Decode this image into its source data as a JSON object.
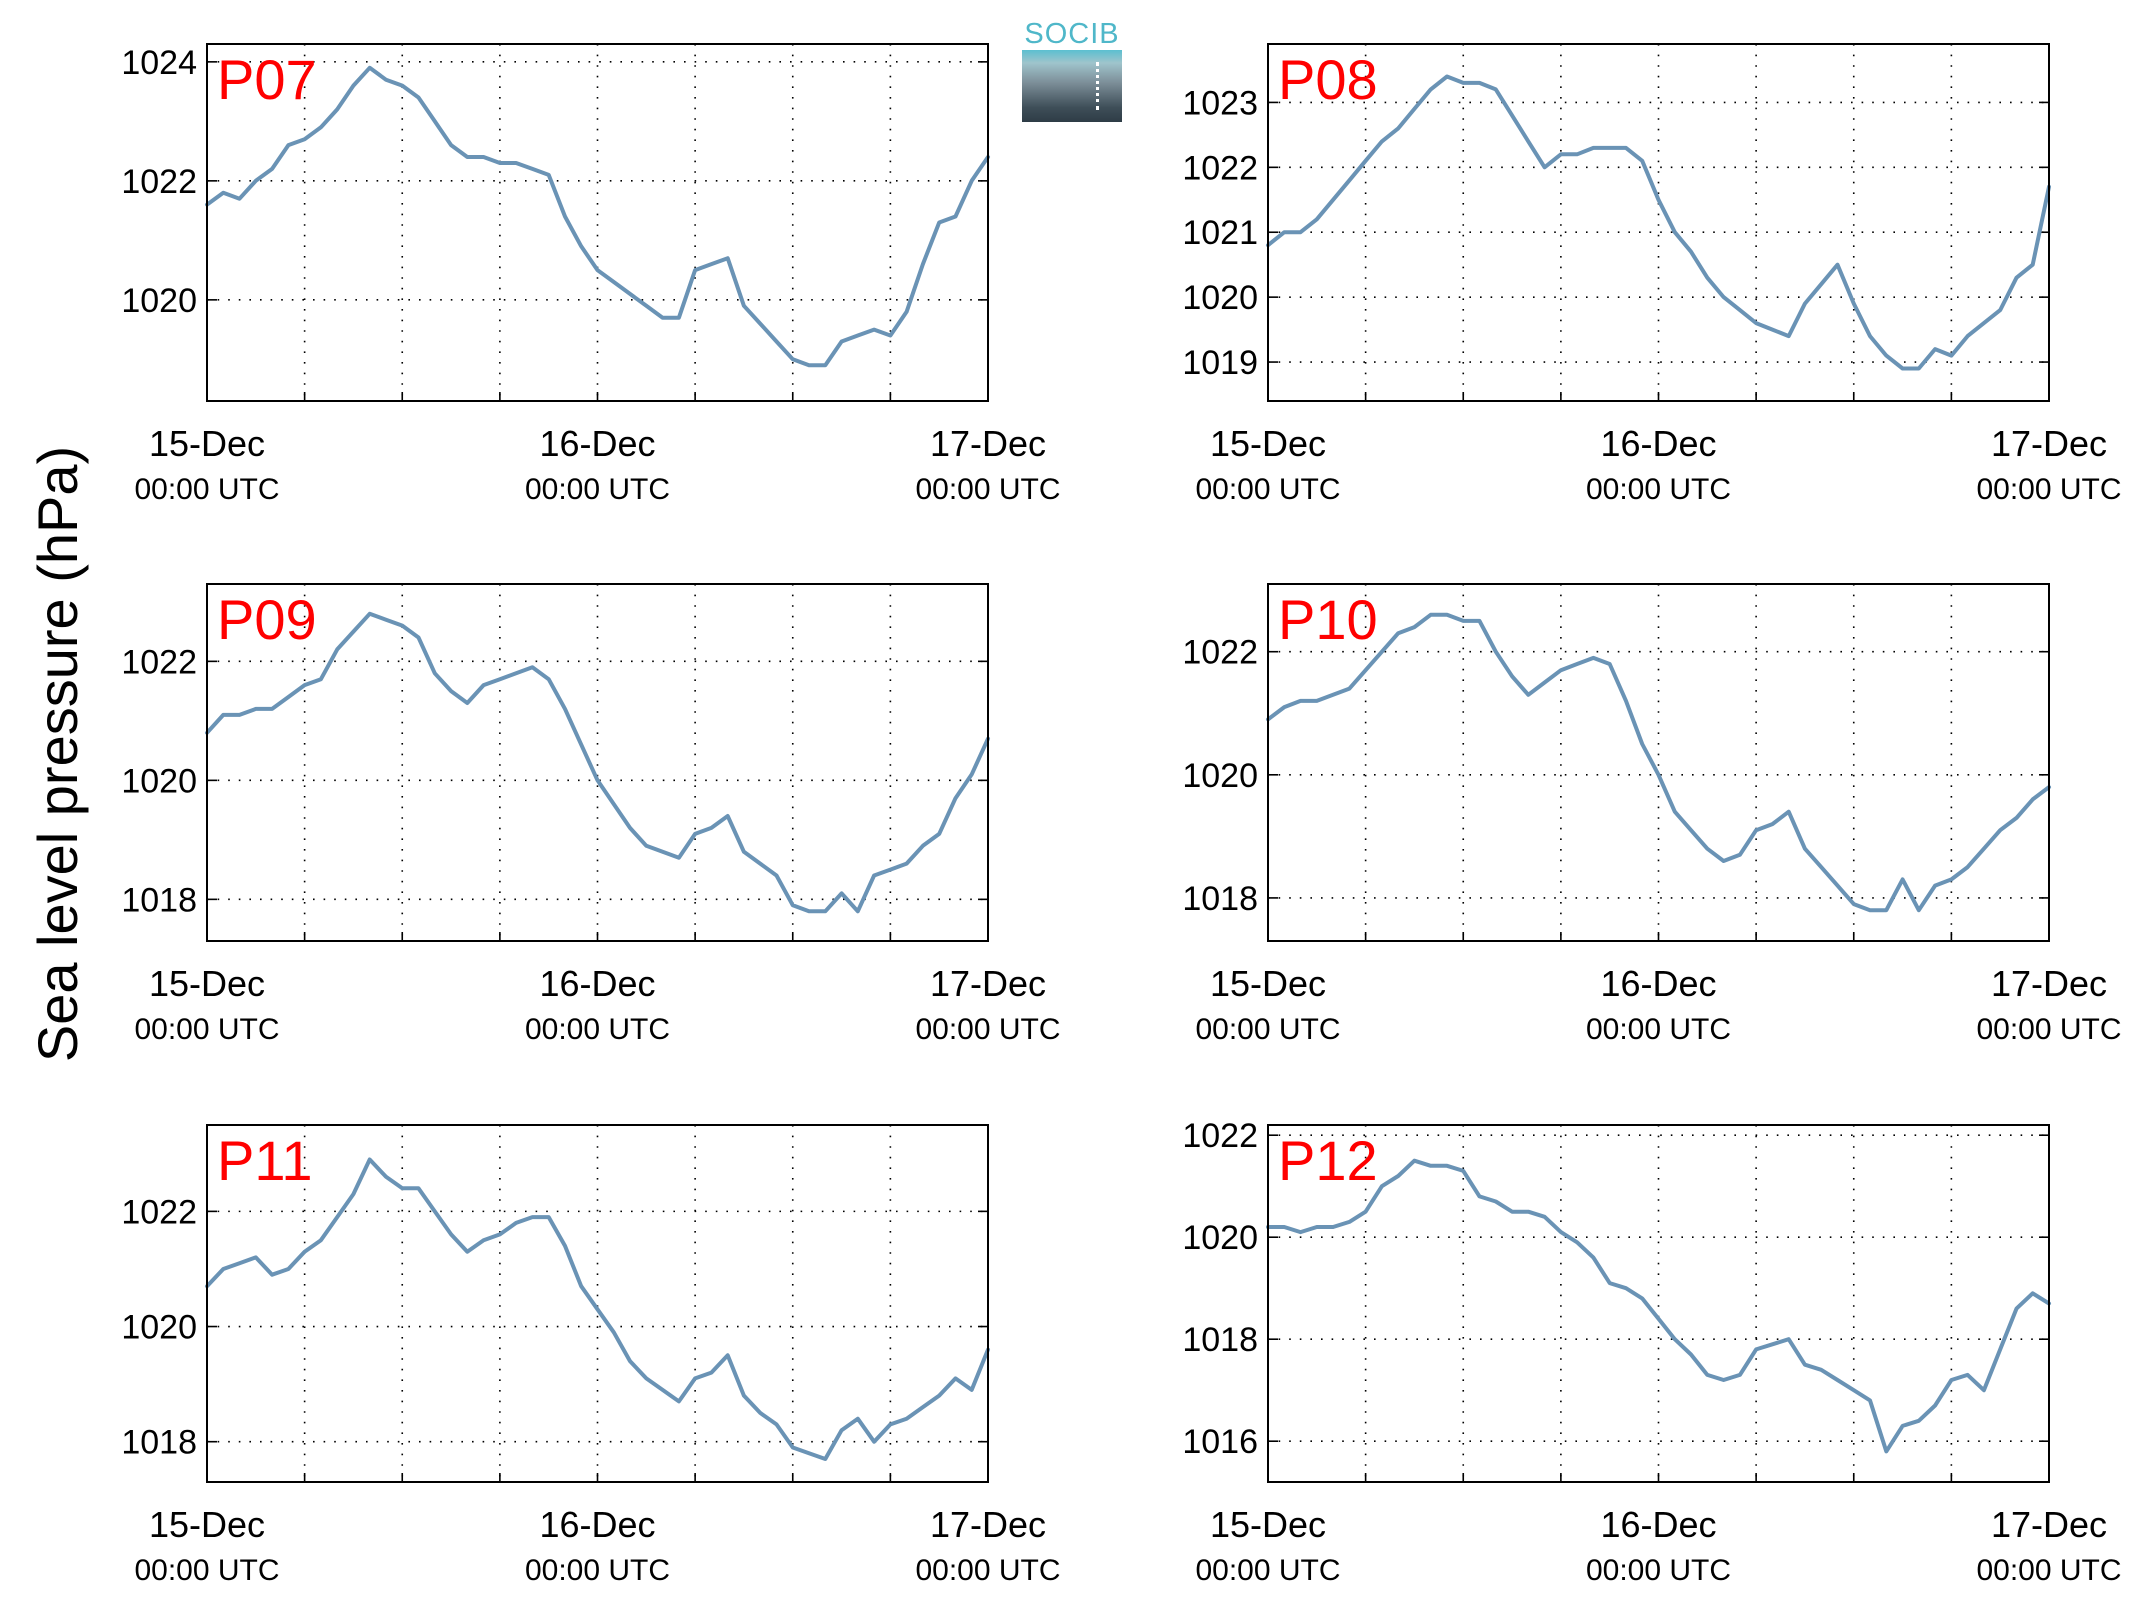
{
  "ylabel": "Sea level pressure (hPa)",
  "logo": {
    "text": "SOCIB",
    "colors": {
      "text": "#4fb7c9",
      "top": "#5bbfd0",
      "bottom": "#2e3c46"
    }
  },
  "line_color": "#6a93b5",
  "label_color": "#ff0000",
  "chart_data": [
    {
      "type": "line",
      "name": "P07",
      "x_ticks": [
        {
          "date": "15-Dec",
          "time": "00:00 UTC"
        },
        {
          "date": "16-Dec",
          "time": "00:00 UTC"
        },
        {
          "date": "17-Dec",
          "time": "00:00 UTC"
        }
      ],
      "xlim_hours": [
        0,
        48
      ],
      "ylim": [
        1018.3,
        1024.3
      ],
      "yticks": [
        1020,
        1022,
        1024
      ],
      "grid": true,
      "x_hours": [
        0,
        1,
        2,
        3,
        4,
        5,
        6,
        7,
        8,
        9,
        10,
        11,
        12,
        13,
        14,
        15,
        16,
        17,
        18,
        19,
        20,
        21,
        22,
        23,
        24,
        25,
        26,
        27,
        28,
        29,
        30,
        31,
        32,
        33,
        34,
        35,
        36,
        37,
        38,
        39,
        40,
        41,
        42,
        43,
        44,
        45,
        46,
        47,
        48
      ],
      "values": [
        1021.6,
        1021.8,
        1021.7,
        1022.0,
        1022.2,
        1022.6,
        1022.7,
        1022.9,
        1023.2,
        1023.6,
        1023.9,
        1023.7,
        1023.6,
        1023.4,
        1023.0,
        1022.6,
        1022.4,
        1022.4,
        1022.3,
        1022.3,
        1022.2,
        1022.1,
        1021.4,
        1020.9,
        1020.5,
        1020.3,
        1020.1,
        1019.9,
        1019.7,
        1019.7,
        1020.5,
        1020.6,
        1020.7,
        1019.9,
        1019.6,
        1019.3,
        1019.0,
        1018.9,
        1018.9,
        1019.3,
        1019.4,
        1019.5,
        1019.4,
        1019.8,
        1020.6,
        1021.3,
        1021.4,
        1022.0,
        1022.4
      ]
    },
    {
      "type": "line",
      "name": "P08",
      "x_ticks": [
        {
          "date": "15-Dec",
          "time": "00:00 UTC"
        },
        {
          "date": "16-Dec",
          "time": "00:00 UTC"
        },
        {
          "date": "17-Dec",
          "time": "00:00 UTC"
        }
      ],
      "xlim_hours": [
        0,
        48
      ],
      "ylim": [
        1018.4,
        1023.9
      ],
      "yticks": [
        1019,
        1020,
        1021,
        1022,
        1023
      ],
      "grid": true,
      "x_hours": [
        0,
        1,
        2,
        3,
        4,
        5,
        6,
        7,
        8,
        9,
        10,
        11,
        12,
        13,
        14,
        15,
        16,
        17,
        18,
        19,
        20,
        21,
        22,
        23,
        24,
        25,
        26,
        27,
        28,
        29,
        30,
        31,
        32,
        33,
        34,
        35,
        36,
        37,
        38,
        39,
        40,
        41,
        42,
        43,
        44,
        45,
        46,
        47,
        48
      ],
      "values": [
        1020.8,
        1021.0,
        1021.0,
        1021.2,
        1021.5,
        1021.8,
        1022.1,
        1022.4,
        1022.6,
        1022.9,
        1023.2,
        1023.4,
        1023.3,
        1023.3,
        1023.2,
        1022.8,
        1022.4,
        1022.0,
        1022.2,
        1022.2,
        1022.3,
        1022.3,
        1022.3,
        1022.1,
        1021.5,
        1021.0,
        1020.7,
        1020.3,
        1020.0,
        1019.8,
        1019.6,
        1019.5,
        1019.4,
        1019.9,
        1020.2,
        1020.5,
        1019.9,
        1019.4,
        1019.1,
        1018.9,
        1018.9,
        1019.2,
        1019.1,
        1019.4,
        1019.6,
        1019.8,
        1020.3,
        1020.5,
        1021.7
      ]
    },
    {
      "type": "line",
      "name": "P09",
      "x_ticks": [
        {
          "date": "15-Dec",
          "time": "00:00 UTC"
        },
        {
          "date": "16-Dec",
          "time": "00:00 UTC"
        },
        {
          "date": "17-Dec",
          "time": "00:00 UTC"
        }
      ],
      "xlim_hours": [
        0,
        48
      ],
      "ylim": [
        1017.3,
        1023.3
      ],
      "yticks": [
        1018,
        1020,
        1022
      ],
      "grid": true,
      "x_hours": [
        0,
        1,
        2,
        3,
        4,
        5,
        6,
        7,
        8,
        9,
        10,
        11,
        12,
        13,
        14,
        15,
        16,
        17,
        18,
        19,
        20,
        21,
        22,
        23,
        24,
        25,
        26,
        27,
        28,
        29,
        30,
        31,
        32,
        33,
        34,
        35,
        36,
        37,
        38,
        39,
        40,
        41,
        42,
        43,
        44,
        45,
        46,
        47,
        48
      ],
      "values": [
        1020.8,
        1021.1,
        1021.1,
        1021.2,
        1021.2,
        1021.4,
        1021.6,
        1021.7,
        1022.2,
        1022.5,
        1022.8,
        1022.7,
        1022.6,
        1022.4,
        1021.8,
        1021.5,
        1021.3,
        1021.6,
        1021.7,
        1021.8,
        1021.9,
        1021.7,
        1021.2,
        1020.6,
        1020.0,
        1019.6,
        1019.2,
        1018.9,
        1018.8,
        1018.7,
        1019.1,
        1019.2,
        1019.4,
        1018.8,
        1018.6,
        1018.4,
        1017.9,
        1017.8,
        1017.8,
        1018.1,
        1017.8,
        1018.4,
        1018.5,
        1018.6,
        1018.9,
        1019.1,
        1019.7,
        1020.1,
        1020.7
      ]
    },
    {
      "type": "line",
      "name": "P10",
      "x_ticks": [
        {
          "date": "15-Dec",
          "time": "00:00 UTC"
        },
        {
          "date": "16-Dec",
          "time": "00:00 UTC"
        },
        {
          "date": "17-Dec",
          "time": "00:00 UTC"
        }
      ],
      "xlim_hours": [
        0,
        48
      ],
      "ylim": [
        1017.3,
        1023.1
      ],
      "yticks": [
        1018,
        1020,
        1022
      ],
      "grid": true,
      "x_hours": [
        0,
        1,
        2,
        3,
        4,
        5,
        6,
        7,
        8,
        9,
        10,
        11,
        12,
        13,
        14,
        15,
        16,
        17,
        18,
        19,
        20,
        21,
        22,
        23,
        24,
        25,
        26,
        27,
        28,
        29,
        30,
        31,
        32,
        33,
        34,
        35,
        36,
        37,
        38,
        39,
        40,
        41,
        42,
        43,
        44,
        45,
        46,
        47,
        48
      ],
      "values": [
        1020.9,
        1021.1,
        1021.2,
        1021.2,
        1021.3,
        1021.4,
        1021.7,
        1022.0,
        1022.3,
        1022.4,
        1022.6,
        1022.6,
        1022.5,
        1022.5,
        1022.0,
        1021.6,
        1021.3,
        1021.5,
        1021.7,
        1021.8,
        1021.9,
        1021.8,
        1021.2,
        1020.5,
        1020.0,
        1019.4,
        1019.1,
        1018.8,
        1018.6,
        1018.7,
        1019.1,
        1019.2,
        1019.4,
        1018.8,
        1018.5,
        1018.2,
        1017.9,
        1017.8,
        1017.8,
        1018.3,
        1017.8,
        1018.2,
        1018.3,
        1018.5,
        1018.8,
        1019.1,
        1019.3,
        1019.6,
        1019.8
      ]
    },
    {
      "type": "line",
      "name": "P11",
      "x_ticks": [
        {
          "date": "15-Dec",
          "time": "00:00 UTC"
        },
        {
          "date": "16-Dec",
          "time": "00:00 UTC"
        },
        {
          "date": "17-Dec",
          "time": "00:00 UTC"
        }
      ],
      "xlim_hours": [
        0,
        48
      ],
      "ylim": [
        1017.3,
        1023.5
      ],
      "yticks": [
        1018,
        1020,
        1022
      ],
      "grid": true,
      "x_hours": [
        0,
        1,
        2,
        3,
        4,
        5,
        6,
        7,
        8,
        9,
        10,
        11,
        12,
        13,
        14,
        15,
        16,
        17,
        18,
        19,
        20,
        21,
        22,
        23,
        24,
        25,
        26,
        27,
        28,
        29,
        30,
        31,
        32,
        33,
        34,
        35,
        36,
        37,
        38,
        39,
        40,
        41,
        42,
        43,
        44,
        45,
        46,
        47,
        48
      ],
      "values": [
        1020.7,
        1021.0,
        1021.1,
        1021.2,
        1020.9,
        1021.0,
        1021.3,
        1021.5,
        1021.9,
        1022.3,
        1022.9,
        1022.6,
        1022.4,
        1022.4,
        1022.0,
        1021.6,
        1021.3,
        1021.5,
        1021.6,
        1021.8,
        1021.9,
        1021.9,
        1021.4,
        1020.7,
        1020.3,
        1019.9,
        1019.4,
        1019.1,
        1018.9,
        1018.7,
        1019.1,
        1019.2,
        1019.5,
        1018.8,
        1018.5,
        1018.3,
        1017.9,
        1017.8,
        1017.7,
        1018.2,
        1018.4,
        1018.0,
        1018.3,
        1018.4,
        1018.6,
        1018.8,
        1019.1,
        1018.9,
        1019.6
      ]
    },
    {
      "type": "line",
      "name": "P12",
      "x_ticks": [
        {
          "date": "15-Dec",
          "time": "00:00 UTC"
        },
        {
          "date": "16-Dec",
          "time": "00:00 UTC"
        },
        {
          "date": "17-Dec",
          "time": "00:00 UTC"
        }
      ],
      "xlim_hours": [
        0,
        48
      ],
      "ylim": [
        1015.2,
        1022.2
      ],
      "yticks": [
        1016,
        1018,
        1020,
        1022
      ],
      "grid": true,
      "x_hours": [
        0,
        1,
        2,
        3,
        4,
        5,
        6,
        7,
        8,
        9,
        10,
        11,
        12,
        13,
        14,
        15,
        16,
        17,
        18,
        19,
        20,
        21,
        22,
        23,
        24,
        25,
        26,
        27,
        28,
        29,
        30,
        31,
        32,
        33,
        34,
        35,
        36,
        37,
        38,
        39,
        40,
        41,
        42,
        43,
        44,
        45,
        46,
        47,
        48
      ],
      "values": [
        1020.2,
        1020.2,
        1020.1,
        1020.2,
        1020.2,
        1020.3,
        1020.5,
        1021.0,
        1021.2,
        1021.5,
        1021.4,
        1021.4,
        1021.3,
        1020.8,
        1020.7,
        1020.5,
        1020.5,
        1020.4,
        1020.1,
        1019.9,
        1019.6,
        1019.1,
        1019.0,
        1018.8,
        1018.4,
        1018.0,
        1017.7,
        1017.3,
        1017.2,
        1017.3,
        1017.8,
        1017.9,
        1018.0,
        1017.5,
        1017.4,
        1017.2,
        1017.0,
        1016.8,
        1015.8,
        1016.3,
        1016.4,
        1016.7,
        1017.2,
        1017.3,
        1017.0,
        1017.8,
        1018.6,
        1018.9,
        1018.7
      ]
    }
  ]
}
